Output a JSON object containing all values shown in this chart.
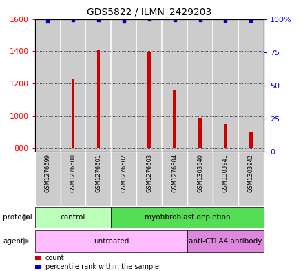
{
  "title": "GDS5822 / ILMN_2429203",
  "samples": [
    "GSM1276599",
    "GSM1276600",
    "GSM1276601",
    "GSM1276602",
    "GSM1276603",
    "GSM1276604",
    "GSM1303940",
    "GSM1303941",
    "GSM1303942"
  ],
  "counts": [
    805,
    1230,
    1410,
    805,
    1395,
    1160,
    990,
    950,
    900
  ],
  "percentiles": [
    98,
    99,
    99,
    98,
    99.5,
    99,
    99,
    98.5,
    98.5
  ],
  "ylim_left": [
    780,
    1600
  ],
  "ylim_right": [
    0,
    100
  ],
  "yticks_left": [
    800,
    1000,
    1200,
    1400,
    1600
  ],
  "yticks_right": [
    0,
    25,
    50,
    75,
    100
  ],
  "ytick_right_labels": [
    "0",
    "25",
    "50",
    "75",
    "100%"
  ],
  "bar_color": "#cc0000",
  "dot_color": "#0000cc",
  "bar_baseline": 800,
  "bar_width": 0.12,
  "protocol_groups": [
    {
      "label": "control",
      "start": 0,
      "end": 3,
      "color": "#bbffbb"
    },
    {
      "label": "myofibroblast depletion",
      "start": 3,
      "end": 9,
      "color": "#55dd55"
    }
  ],
  "agent_groups": [
    {
      "label": "untreated",
      "start": 0,
      "end": 6,
      "color": "#ffbbff"
    },
    {
      "label": "anti-CTLA4 antibody",
      "start": 6,
      "end": 9,
      "color": "#dd88dd"
    }
  ],
  "legend_items": [
    {
      "label": "count",
      "color": "#cc0000"
    },
    {
      "label": "percentile rank within the sample",
      "color": "#0000cc"
    }
  ],
  "col_bg_color": "#cccccc",
  "col_border_color": "#aaaaaa",
  "title_fontsize": 10,
  "sample_fontsize": 6,
  "label_fontsize": 7.5,
  "row_label_fontsize": 7.5
}
